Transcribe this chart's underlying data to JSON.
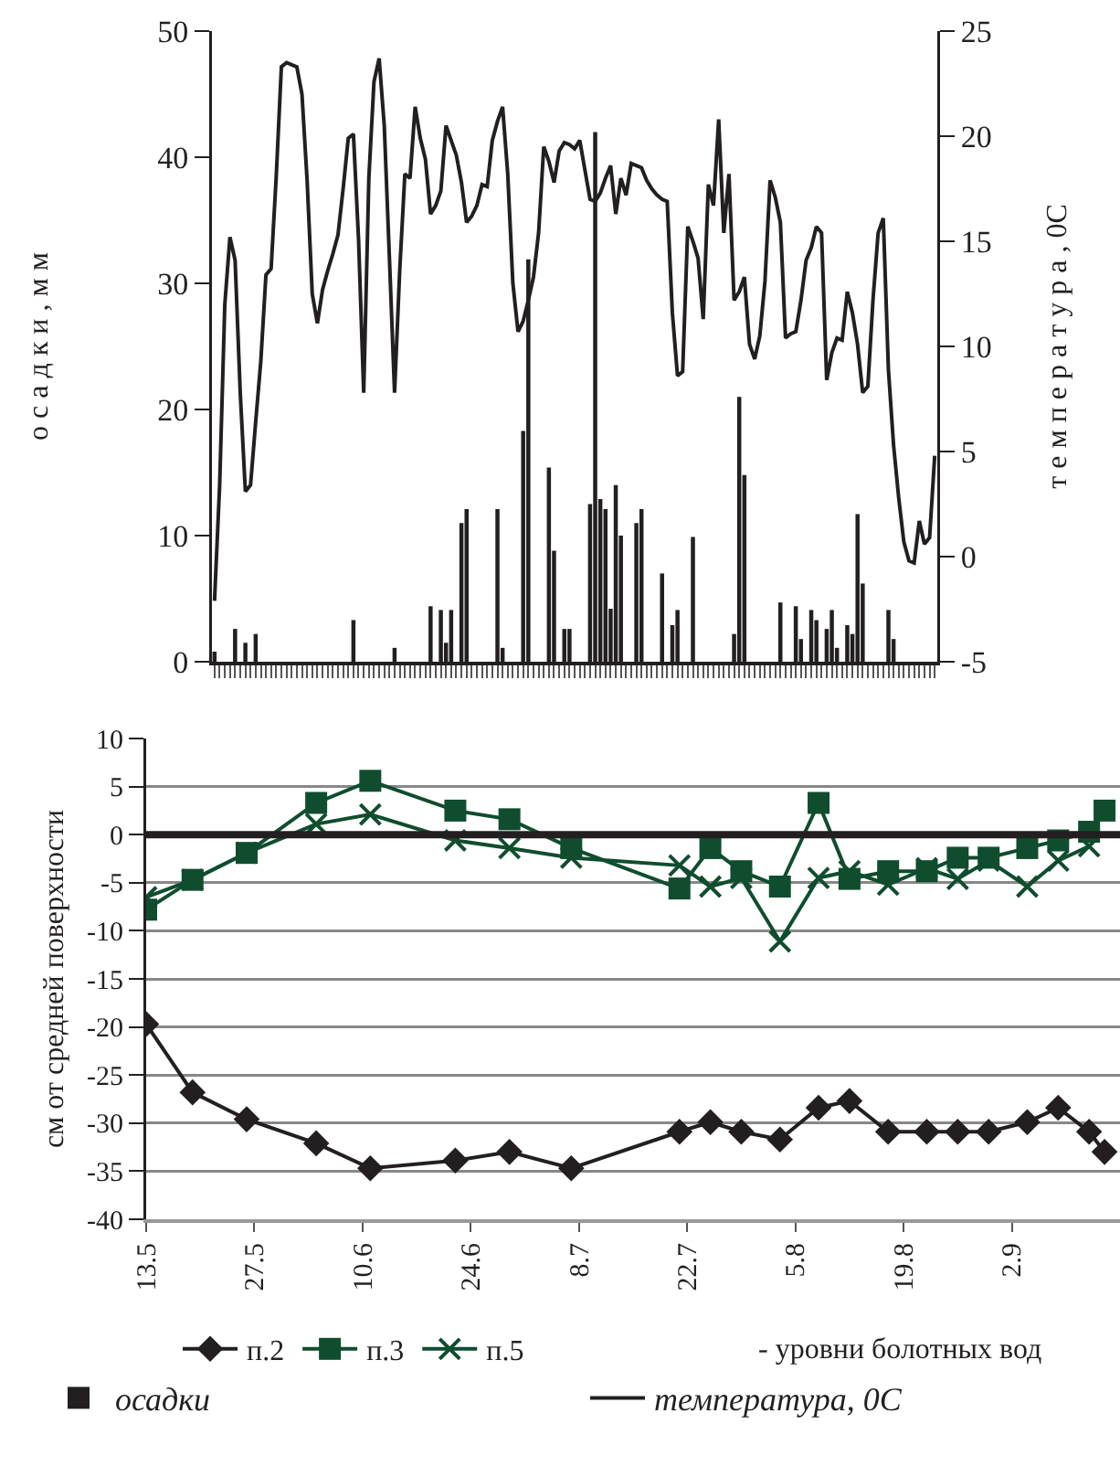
{
  "chart_data": [
    {
      "type": "bar",
      "ylabel": "о с а д к и , м м",
      "y2label": "т е м п е р а т у р а , 0С",
      "tick_labels": "y",
      "grid": false,
      "legend": "bottom",
      "categories": [
        null,
        null,
        null,
        null,
        null,
        null,
        null,
        null,
        null,
        null,
        null,
        null,
        null,
        null,
        null,
        null,
        null,
        null,
        null,
        null,
        null,
        null,
        null,
        null,
        null,
        null,
        null,
        null,
        null,
        null,
        null,
        null,
        null,
        null,
        null,
        null,
        null,
        null,
        null,
        null,
        null,
        null,
        null,
        null,
        null,
        null,
        null,
        null,
        null,
        null,
        null,
        null,
        null,
        null,
        null,
        null,
        null,
        null,
        null,
        null,
        null,
        null,
        null,
        null,
        null,
        null,
        null,
        null,
        null,
        null,
        null,
        null,
        null,
        null,
        null,
        null,
        null,
        null,
        null,
        null,
        null,
        null,
        null,
        null,
        null,
        null,
        null,
        null,
        null,
        null,
        null,
        null,
        null,
        null,
        null,
        null,
        null,
        null,
        null,
        null,
        null,
        null,
        null,
        null,
        null,
        null,
        null,
        null,
        null,
        null,
        null,
        null,
        null,
        null,
        null,
        null,
        null,
        null,
        null,
        null,
        null,
        null,
        null,
        null,
        null,
        null,
        null,
        null,
        null,
        null,
        null,
        null,
        null,
        null,
        null,
        null,
        null,
        null,
        null,
        null,
        null
      ],
      "ylim": [
        0,
        50
      ],
      "yticks": [
        0,
        10,
        20,
        30,
        40,
        50
      ],
      "y2lim": [
        -5,
        25
      ],
      "y2ticks": [
        -5,
        0,
        5,
        10,
        15,
        20,
        25
      ],
      "series": [
        {
          "name": "осадки",
          "color": "#231f20",
          "values": [
            0.8,
            0,
            0,
            0,
            2.6,
            0,
            1.5,
            0,
            2.2,
            0,
            0,
            0,
            0,
            0,
            0,
            0,
            0,
            0,
            0,
            0,
            0,
            0,
            0,
            0,
            0,
            0,
            0,
            3.3,
            0,
            0,
            0,
            0,
            0,
            0,
            0,
            1.1,
            0,
            0,
            0,
            0,
            0,
            0,
            4.4,
            0,
            4.1,
            1.5,
            4.1,
            0,
            11,
            12.1,
            0,
            0,
            0,
            0,
            0,
            12.1,
            1.1,
            0,
            0,
            0,
            18.3,
            31.9,
            0,
            0,
            0,
            15.4,
            8.8,
            0,
            2.6,
            2.6,
            0,
            0,
            0,
            12.5,
            42,
            12.9,
            12.1,
            4.2,
            14,
            10,
            0,
            0,
            11,
            12.1,
            0,
            0,
            0,
            7,
            0,
            2.9,
            4.1,
            0,
            0,
            9.9,
            0,
            0,
            0,
            0,
            0,
            0,
            0,
            2.2,
            21,
            14.8,
            0,
            0,
            0,
            0,
            0,
            0,
            4.7,
            0,
            0,
            4.4,
            1.8,
            0,
            4.1,
            3.3,
            0,
            2.6,
            4.1,
            1.1,
            0,
            2.9,
            2.2,
            11.7,
            6.2,
            0,
            0,
            0,
            0,
            4.1,
            1.8,
            0,
            0,
            0,
            0,
            0,
            0,
            0,
            0
          ]
        },
        {
          "name": "температура, 0С",
          "type": "line",
          "axis": "y2",
          "color": "#231f20",
          "marker": "none",
          "line_style": "solid",
          "values": [
            -2.1,
            3.4,
            12,
            15.2,
            14.1,
            7.8,
            3.1,
            3.4,
            6.4,
            9.3,
            13.4,
            13.7,
            18.1,
            23.3,
            23.5,
            23.4,
            23.3,
            22,
            17.9,
            12.5,
            11.1,
            12.7,
            13.6,
            14.4,
            15.3,
            17.5,
            19.9,
            20.1,
            15.1,
            7.8,
            18,
            22.6,
            23.7,
            20.5,
            14.2,
            7.8,
            13.6,
            18.2,
            18,
            21.4,
            19.9,
            18.9,
            16.3,
            16.7,
            17.4,
            20.5,
            19.8,
            19.1,
            17.8,
            15.9,
            16.2,
            16.7,
            17.7,
            17.6,
            19.8,
            20.7,
            21.4,
            18.2,
            13,
            10.7,
            11.2,
            12.2,
            13.3,
            15.4,
            19.5,
            18.8,
            17.8,
            19.3,
            19.7,
            19.6,
            19.4,
            19.8,
            18.4,
            17,
            16.9,
            17.3,
            18,
            18.6,
            16.3,
            18,
            17.2,
            18.7,
            18.6,
            18.5,
            17.9,
            17.5,
            17.2,
            17,
            16.9,
            11.6,
            8.6,
            8.8,
            15.7,
            15,
            14.2,
            11.3,
            17.7,
            16.7,
            20.8,
            15.4,
            18.2,
            12.2,
            12.6,
            13.3,
            10.1,
            9.4,
            10.5,
            13.1,
            17.9,
            17.1,
            15.9,
            10.4,
            10.6,
            10.7,
            12.2,
            14.1,
            14.7,
            15.7,
            15.4,
            8.4,
            9.7,
            10.4,
            10.3,
            12.6,
            11.6,
            10.1,
            7.8,
            8.1,
            12.2,
            15.4,
            16.1,
            8.9,
            5.3,
            2.8,
            0.7,
            -0.2,
            -0.3,
            1.7,
            0.6,
            0.9,
            4.8
          ]
        }
      ]
    },
    {
      "type": "line",
      "ylabel": "см от средней поверхности",
      "grid": "y",
      "legend": "bottom",
      "annotations": [
        "- уровни болотных вод"
      ],
      "x": [
        "--05-13",
        "--05-19",
        "--05-26",
        "--06-04",
        "--06-11",
        "--06-22",
        "--06-29",
        "--07-07",
        "--07-21",
        "--07-25",
        "--07-29",
        "--08-03",
        "--08-08",
        "--08-12",
        "--08-17",
        "--08-22",
        "--08-26",
        "--08-30",
        "--09-04",
        "--09-08",
        "--09-12",
        "--09-14"
      ],
      "xlim": [
        "--05-13",
        "--09-16"
      ],
      "xticks": [
        {
          "value": "--05-13",
          "label": "13.5"
        },
        {
          "value": "--05-27",
          "label": "27.5"
        },
        {
          "value": "--06-10",
          "label": "10.6"
        },
        {
          "value": "--06-24",
          "label": "24.6"
        },
        {
          "value": "--07-08",
          "label": "8.7"
        },
        {
          "value": "--07-22",
          "label": "22.7"
        },
        {
          "value": "--08-05",
          "label": "5.8"
        },
        {
          "value": "--08-19",
          "label": "19.8"
        },
        {
          "value": "--09-02",
          "label": "2.9"
        }
      ],
      "ylim": [
        -40,
        10
      ],
      "yticks": [
        -40,
        -35,
        -30,
        -25,
        -20,
        -15,
        -10,
        -5,
        0,
        5,
        10
      ],
      "ref_lines": [
        {
          "axis": "y",
          "value": 0,
          "color": "#231f20"
        }
      ],
      "series": [
        {
          "name": "п.2",
          "color": "#231f20",
          "marker": "diamond",
          "values": [
            -19.7,
            -26.8,
            -29.6,
            -32.1,
            -34.7,
            -33.9,
            -33,
            -34.7,
            -30.9,
            -29.9,
            -30.9,
            -31.7,
            -28.4,
            -27.7,
            -30.9,
            -30.9,
            -30.9,
            -30.9,
            -29.9,
            -28.4,
            -30.9,
            -33
          ]
        },
        {
          "name": "п.3",
          "color": "#0f4d2e",
          "marker": "square",
          "values": [
            -7.8,
            -4.7,
            -1.9,
            3.3,
            5.6,
            2.5,
            1.6,
            -1.4,
            -5.6,
            -1.4,
            -3.8,
            -5.4,
            3.3,
            -4.6,
            -3.8,
            -3.8,
            -2.4,
            -2.4,
            -1.4,
            -0.6,
            0.3,
            2.5
          ]
        },
        {
          "name": "п.5",
          "color": "#0f4d2e",
          "marker": "cross",
          "values": [
            -6.5,
            -4.7,
            -1.9,
            1.1,
            2.1,
            -0.6,
            -1.4,
            -2.4,
            -3.2,
            -5.4,
            -4.5,
            -11.1,
            -4.5,
            -3.8,
            -5.2,
            -3.5,
            -4.6,
            -2.7,
            -5.4,
            -2.7,
            -1.2,
            null
          ]
        }
      ]
    }
  ]
}
